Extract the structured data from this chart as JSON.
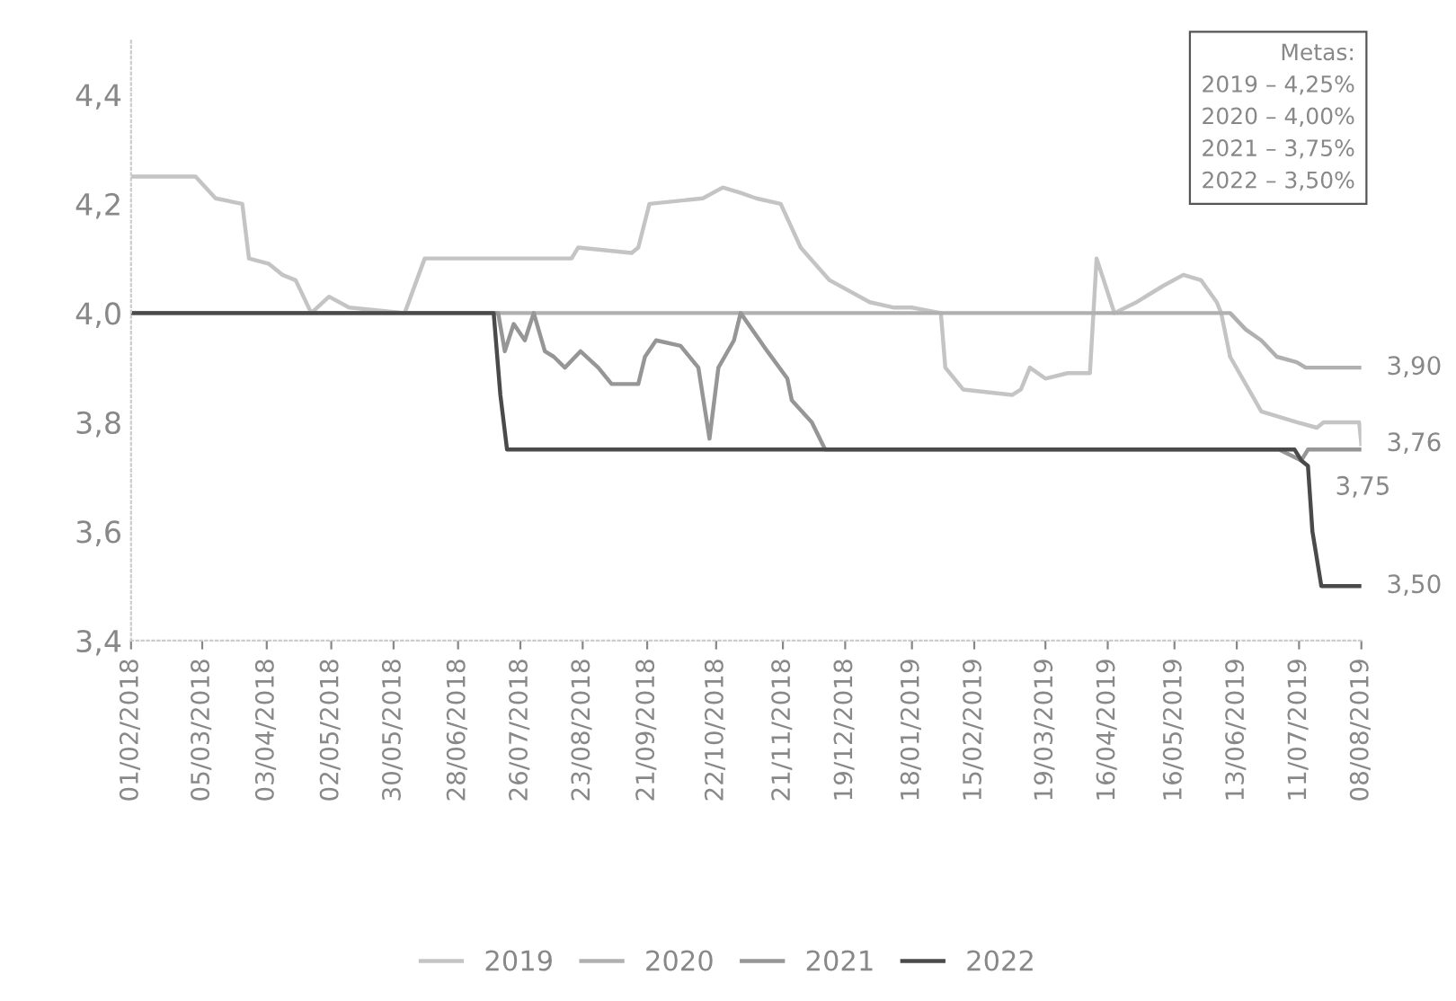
{
  "chart_data": {
    "type": "line",
    "xlim": [
      "2018-02-01",
      "2019-08-08"
    ],
    "xticks": [
      {
        "value": "2018-02-01",
        "label": "01/02/2018"
      },
      {
        "value": "2018-03-05",
        "label": "05/03/2018"
      },
      {
        "value": "2018-04-03",
        "label": "03/04/2018"
      },
      {
        "value": "2018-05-02",
        "label": "02/05/2018"
      },
      {
        "value": "2018-05-30",
        "label": "30/05/2018"
      },
      {
        "value": "2018-06-28",
        "label": "28/06/2018"
      },
      {
        "value": "2018-07-26",
        "label": "26/07/2018"
      },
      {
        "value": "2018-08-23",
        "label": "23/08/2018"
      },
      {
        "value": "2018-09-21",
        "label": "21/09/2018"
      },
      {
        "value": "2018-10-22",
        "label": "22/10/2018"
      },
      {
        "value": "2018-11-21",
        "label": "21/11/2018"
      },
      {
        "value": "2018-12-19",
        "label": "19/12/2018"
      },
      {
        "value": "2019-01-18",
        "label": "18/01/2019"
      },
      {
        "value": "2019-02-15",
        "label": "15/02/2019"
      },
      {
        "value": "2019-03-19",
        "label": "19/03/2019"
      },
      {
        "value": "2019-04-16",
        "label": "16/04/2019"
      },
      {
        "value": "2019-05-16",
        "label": "16/05/2019"
      },
      {
        "value": "2019-06-13",
        "label": "13/06/2019"
      },
      {
        "value": "2019-07-11",
        "label": "11/07/2019"
      },
      {
        "value": "2019-08-08",
        "label": "08/08/2019"
      }
    ],
    "ylim": [
      3.4,
      4.5
    ],
    "yticks": [
      {
        "value": 3.4,
        "label": "3,4"
      },
      {
        "value": 3.6,
        "label": "3,6"
      },
      {
        "value": 3.8,
        "label": "3,8"
      },
      {
        "value": 4.0,
        "label": "4,0"
      },
      {
        "value": 4.2,
        "label": "4,2"
      },
      {
        "value": 4.4,
        "label": "4,4"
      }
    ],
    "grid": false,
    "legend": "bottom",
    "series": [
      {
        "name": "2019",
        "color": "#c4c4c4",
        "x": [
          "2018-02-01",
          "2018-03-02",
          "2018-03-11",
          "2018-03-23",
          "2018-03-26",
          "2018-04-04",
          "2018-04-10",
          "2018-04-16",
          "2018-04-23",
          "2018-05-01",
          "2018-05-10",
          "2018-06-04",
          "2018-06-13",
          "2018-08-18",
          "2018-08-21",
          "2018-09-14",
          "2018-09-17",
          "2018-09-22",
          "2018-10-16",
          "2018-10-25",
          "2018-11-02",
          "2018-11-09",
          "2018-11-20",
          "2018-11-29",
          "2018-12-12",
          "2018-12-30",
          "2019-01-10",
          "2019-01-18",
          "2019-01-31",
          "2019-02-02",
          "2019-02-10",
          "2019-03-04",
          "2019-03-08",
          "2019-03-12",
          "2019-03-19",
          "2019-03-29",
          "2019-04-08",
          "2019-04-11",
          "2019-04-19",
          "2019-04-29",
          "2019-05-11",
          "2019-05-20",
          "2019-05-28",
          "2019-06-04",
          "2019-06-06",
          "2019-06-10",
          "2019-06-17",
          "2019-06-24",
          "2019-07-10",
          "2019-07-19",
          "2019-07-22",
          "2019-08-07",
          "2019-08-08"
        ],
        "values": [
          4.25,
          4.25,
          4.21,
          4.2,
          4.1,
          4.09,
          4.07,
          4.06,
          4.0,
          4.03,
          4.01,
          4.0,
          4.1,
          4.1,
          4.12,
          4.11,
          4.12,
          4.2,
          4.21,
          4.23,
          4.22,
          4.21,
          4.2,
          4.12,
          4.06,
          4.02,
          4.01,
          4.01,
          4.0,
          3.9,
          3.86,
          3.85,
          3.86,
          3.9,
          3.88,
          3.89,
          3.89,
          4.1,
          4.0,
          4.02,
          4.05,
          4.07,
          4.06,
          4.02,
          4.0,
          3.92,
          3.87,
          3.82,
          3.8,
          3.79,
          3.8,
          3.8,
          3.76
        ]
      },
      {
        "name": "2020",
        "color": "#b0b0b0",
        "x": [
          "2018-02-01",
          "2019-06-10",
          "2019-06-17",
          "2019-06-24",
          "2019-07-01",
          "2019-07-10",
          "2019-07-14",
          "2019-08-08"
        ],
        "values": [
          4.0,
          4.0,
          3.97,
          3.95,
          3.92,
          3.91,
          3.9,
          3.9
        ]
      },
      {
        "name": "2021",
        "color": "#969696",
        "x": [
          "2018-02-01",
          "2018-07-16",
          "2018-07-19",
          "2018-07-23",
          "2018-07-28",
          "2018-08-01",
          "2018-08-06",
          "2018-08-10",
          "2018-08-15",
          "2018-08-22",
          "2018-08-30",
          "2018-09-05",
          "2018-09-17",
          "2018-09-20",
          "2018-09-25",
          "2018-10-06",
          "2018-10-14",
          "2018-10-19",
          "2018-10-23",
          "2018-10-30",
          "2018-11-02",
          "2018-11-14",
          "2018-11-23",
          "2018-11-25",
          "2018-12-04",
          "2018-12-10",
          "2019-07-02",
          "2019-07-12",
          "2019-07-15",
          "2019-08-08"
        ],
        "values": [
          4.0,
          4.0,
          3.93,
          3.98,
          3.95,
          4.0,
          3.93,
          3.92,
          3.9,
          3.93,
          3.9,
          3.87,
          3.87,
          3.92,
          3.95,
          3.94,
          3.9,
          3.77,
          3.9,
          3.95,
          4.0,
          3.93,
          3.88,
          3.84,
          3.8,
          3.75,
          3.75,
          3.73,
          3.75,
          3.75
        ]
      },
      {
        "name": "2022",
        "color": "#4a4a4a",
        "x": [
          "2018-02-01",
          "2018-07-14",
          "2018-07-17",
          "2018-07-20",
          "2019-07-09",
          "2019-07-12",
          "2019-07-15",
          "2019-07-17",
          "2019-07-21",
          "2019-08-08"
        ],
        "values": [
          4.0,
          4.0,
          3.85,
          3.75,
          3.75,
          3.73,
          3.72,
          3.6,
          3.5,
          3.5
        ]
      }
    ],
    "annotations": [
      {
        "text": "3,90",
        "x": "2019-08-08",
        "y": 3.9
      },
      {
        "text": "3,76",
        "x": "2019-08-08",
        "y": 3.76
      },
      {
        "text": "3,75",
        "x": "2019-07-16",
        "y": 3.68
      },
      {
        "text": "3,50",
        "x": "2019-08-08",
        "y": 3.5
      },
      "Metas:\n2019 – 4,25%\n2020 – 4,00%\n2021 – 3,75%\n2022 – 3,50%"
    ]
  }
}
